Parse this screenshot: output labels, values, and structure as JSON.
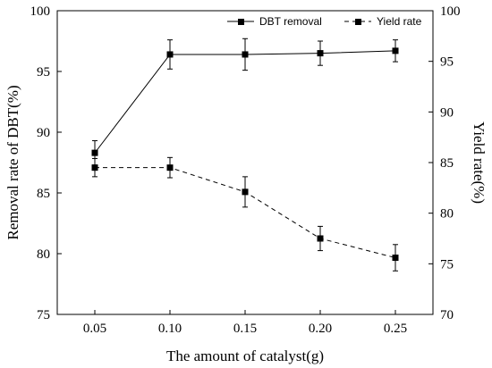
{
  "chart_data": {
    "type": "line",
    "x": [
      0.05,
      0.1,
      0.15,
      0.2,
      0.25
    ],
    "x_tick_labels": [
      "0.05",
      "0.10",
      "0.15",
      "0.20",
      "0.25"
    ],
    "xlabel": "The amount of catalyst(g)",
    "xlim": [
      0.025,
      0.275
    ],
    "ylabel_left": "Removal rate of DBT(%)",
    "ylim_left": [
      75,
      100
    ],
    "yticks_left": [
      "75",
      "80",
      "85",
      "90",
      "95",
      "100"
    ],
    "ylabel_right": "Yield rate(%)",
    "ylim_right": [
      70,
      100
    ],
    "yticks_right": [
      "70",
      "75",
      "80",
      "85",
      "90",
      "95",
      "100"
    ],
    "grid": false,
    "legend_position": "top-right",
    "series": [
      {
        "name": "DBT removal",
        "axis": "left",
        "line_style": "solid",
        "marker": "square",
        "values": [
          88.3,
          96.4,
          96.4,
          96.5,
          96.7
        ],
        "errors": [
          1.0,
          1.2,
          1.3,
          1.0,
          0.9
        ]
      },
      {
        "name": "Yield rate",
        "axis": "right",
        "line_style": "dashed",
        "marker": "square",
        "values": [
          84.5,
          84.5,
          82.1,
          77.5,
          75.6
        ],
        "errors": [
          0.9,
          1.0,
          1.5,
          1.2,
          1.3
        ]
      }
    ],
    "color": "#000000"
  }
}
